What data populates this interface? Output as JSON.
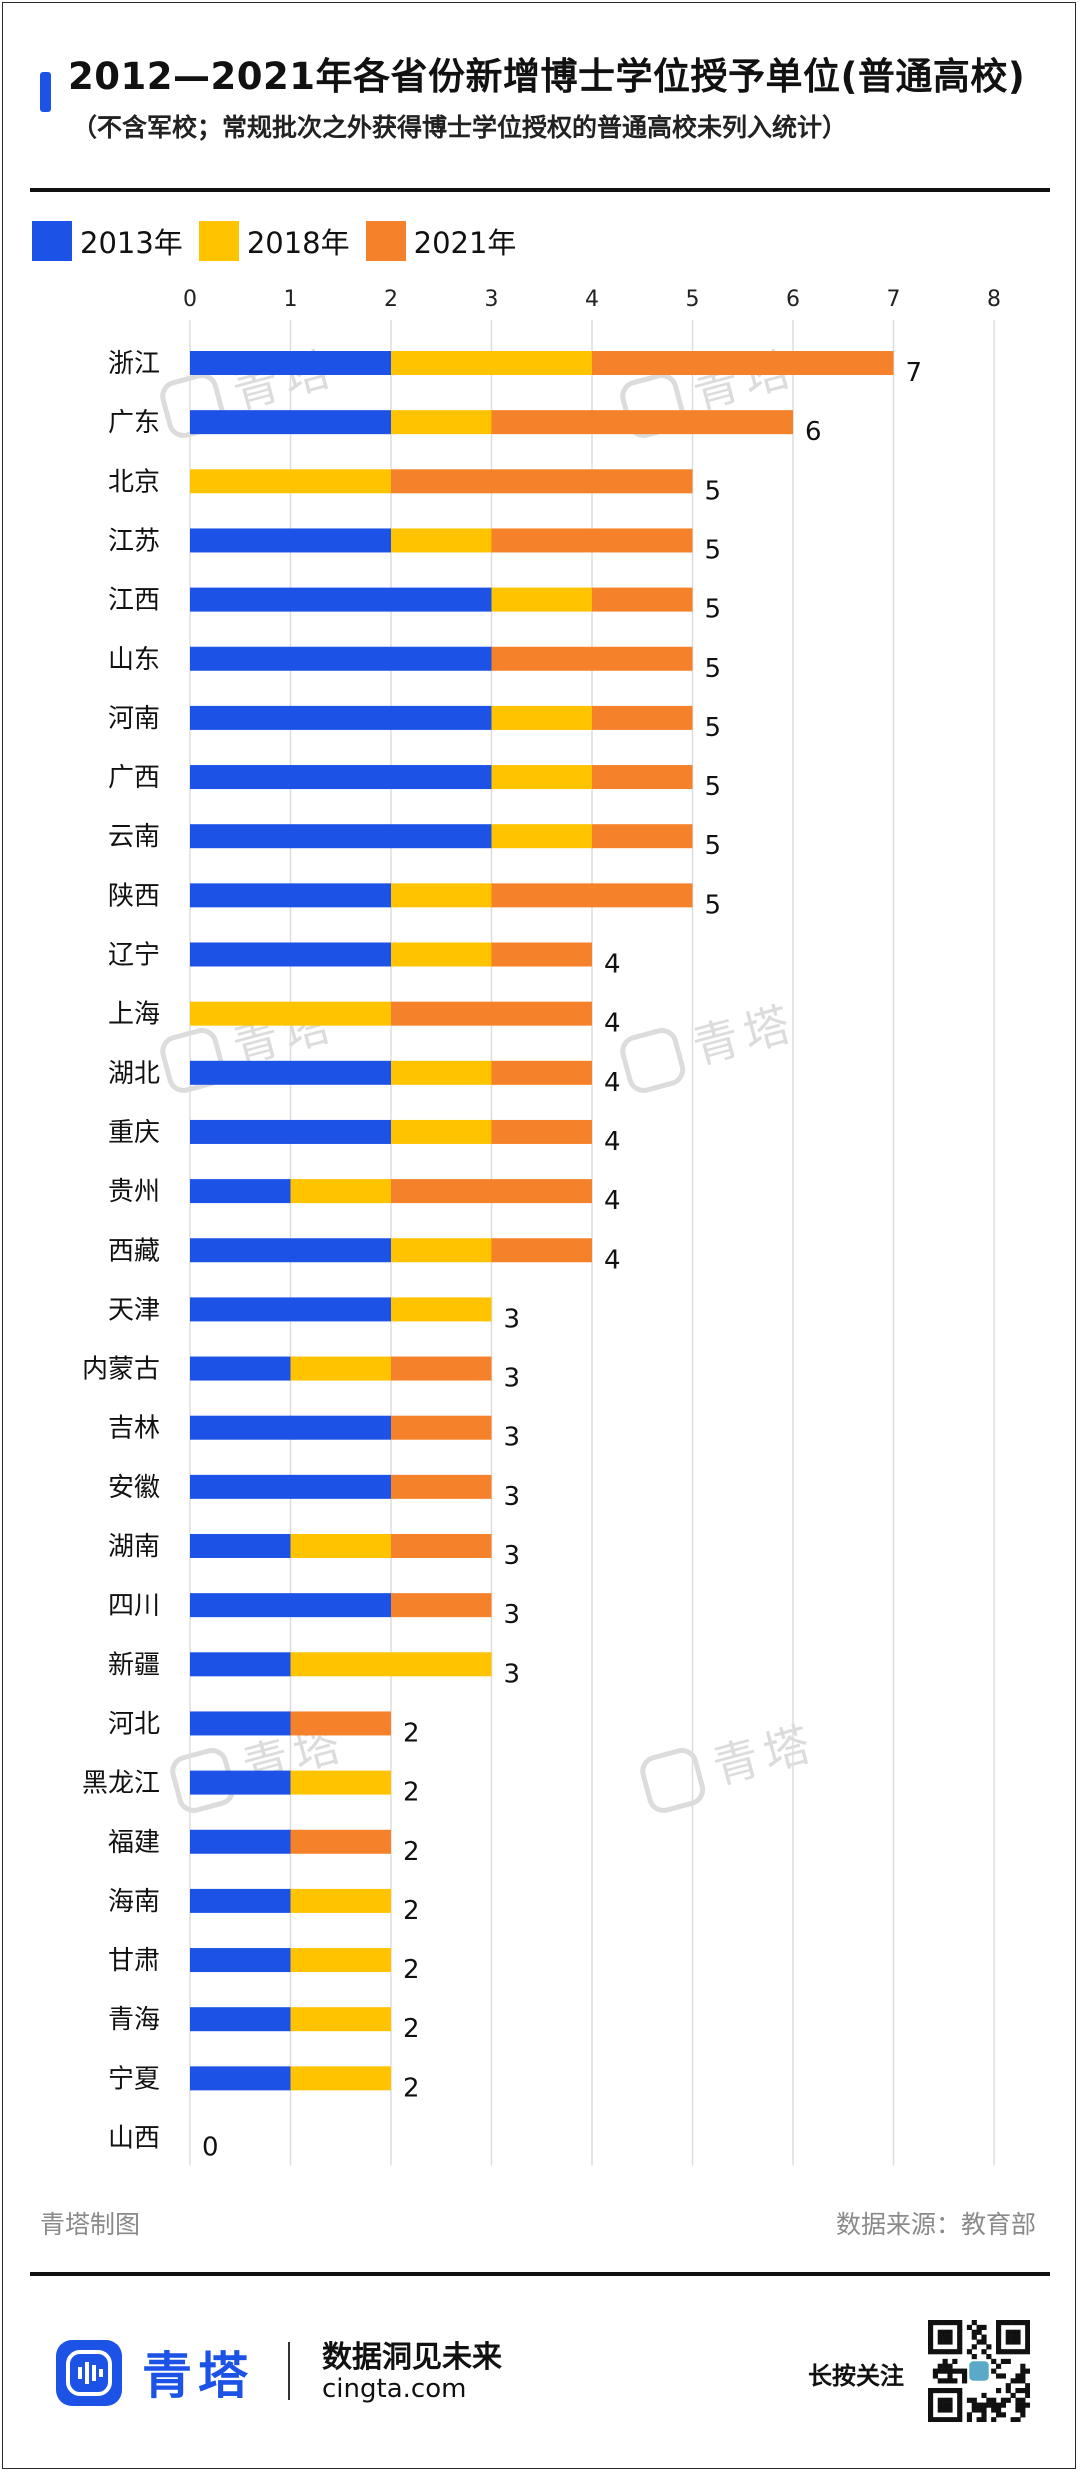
{
  "header": {
    "title": "2012—2021年各省份新增博士学位授予单位(普通高校)",
    "subtitle": "（不含军校；常规批次之外获得博士学位授权的普通高校未列入统计）"
  },
  "colors": {
    "blue": "#1c52e6",
    "yellow": "#ffc300",
    "orange": "#f5822a",
    "brand": "#1c52e6",
    "watermark": "#dcdcdc"
  },
  "chart_data": {
    "type": "bar",
    "orientation": "horizontal",
    "stacked": true,
    "xlim": [
      0,
      8
    ],
    "xticks": [
      "0",
      "1",
      "2",
      "3",
      "4",
      "5",
      "6",
      "7",
      "8"
    ],
    "grid": true,
    "legend_position": "top-left",
    "categories": [
      "浙江",
      "广东",
      "北京",
      "江苏",
      "江西",
      "山东",
      "河南",
      "广西",
      "云南",
      "陕西",
      "辽宁",
      "上海",
      "湖北",
      "重庆",
      "贵州",
      "西藏",
      "天津",
      "内蒙古",
      "吉林",
      "安徽",
      "湖南",
      "四川",
      "新疆",
      "河北",
      "黑龙江",
      "福建",
      "海南",
      "甘肃",
      "青海",
      "宁夏",
      "山西"
    ],
    "series": [
      {
        "name": "2013年",
        "color": "#1c52e6",
        "values": [
          2,
          2,
          0,
          2,
          3,
          3,
          3,
          3,
          3,
          2,
          2,
          0,
          2,
          2,
          1,
          2,
          2,
          1,
          2,
          2,
          1,
          2,
          1,
          1,
          1,
          1,
          1,
          1,
          1,
          1,
          0
        ]
      },
      {
        "name": "2018年",
        "color": "#ffc300",
        "values": [
          2,
          1,
          2,
          1,
          1,
          0,
          1,
          1,
          1,
          1,
          1,
          2,
          1,
          1,
          1,
          1,
          1,
          1,
          0,
          0,
          1,
          0,
          2,
          0,
          1,
          0,
          1,
          1,
          1,
          1,
          0
        ]
      },
      {
        "name": "2021年",
        "color": "#f5822a",
        "values": [
          3,
          3,
          3,
          2,
          1,
          2,
          1,
          1,
          1,
          2,
          1,
          2,
          1,
          1,
          2,
          1,
          0,
          1,
          1,
          1,
          1,
          1,
          0,
          1,
          0,
          1,
          0,
          0,
          0,
          0,
          0
        ]
      }
    ],
    "totals": [
      "7",
      "6",
      "5",
      "5",
      "5",
      "5",
      "5",
      "5",
      "5",
      "5",
      "4",
      "4",
      "4",
      "4",
      "4",
      "4",
      "3",
      "3",
      "3",
      "3",
      "3",
      "3",
      "3",
      "2",
      "2",
      "2",
      "2",
      "2",
      "2",
      "2",
      "0"
    ]
  },
  "watermark_text": "青塔",
  "footer": {
    "credit": "青塔制图",
    "source": "数据来源：教育部"
  },
  "brand": {
    "name": "青塔",
    "slogan": "数据洞见未来",
    "site": "cingta.com",
    "follow": "长按关注"
  }
}
